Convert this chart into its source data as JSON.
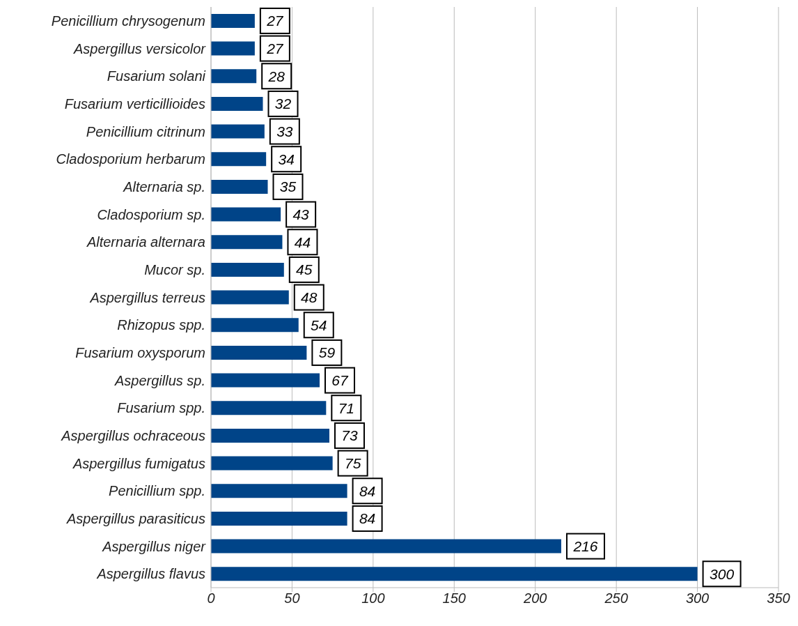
{
  "chart_data": {
    "type": "bar",
    "orientation": "horizontal",
    "categories": [
      "Penicillium chrysogenum",
      "Aspergillus versicolor",
      "Fusarium solani",
      "Fusarium verticillioides",
      "Penicillium citrinum",
      "Cladosporium herbarum",
      "Alternaria sp.",
      "Cladosporium sp.",
      "Alternaria alternara",
      "Mucor sp.",
      "Aspergillus terreus",
      "Rhizopus spp.",
      "Fusarium oxysporum",
      "Aspergillus sp.",
      "Fusarium spp.",
      "Aspergillus ochraceous",
      "Aspergillus fumigatus",
      "Penicillium spp.",
      "Aspergillus parasiticus",
      "Aspergillus niger",
      "Aspergillus flavus"
    ],
    "values": [
      27,
      27,
      28,
      32,
      33,
      34,
      35,
      43,
      44,
      45,
      48,
      54,
      59,
      67,
      71,
      73,
      75,
      84,
      84,
      216,
      300
    ],
    "color": "#004488",
    "xlim": [
      0,
      350
    ],
    "xticks": [
      0,
      50,
      100,
      150,
      200,
      250,
      300,
      350
    ],
    "grid": "x",
    "data_labels": true
  }
}
